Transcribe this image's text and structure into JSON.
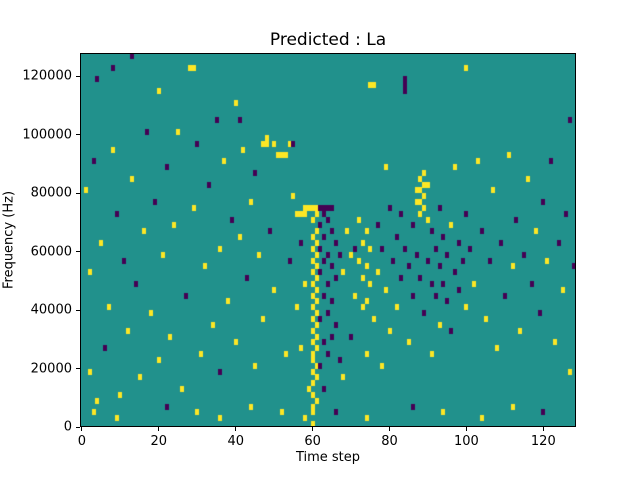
{
  "figure": {
    "title": "Predicted : La",
    "xlabel": "Time step",
    "ylabel": "Frequency (Hz)"
  },
  "chart_data": {
    "type": "heatmap",
    "title": "Predicted : La",
    "xlabel": "Time step",
    "ylabel": "Frequency (Hz)",
    "n_cols": 129,
    "n_rows": 64,
    "x_extent": [
      -0.5,
      128.5
    ],
    "y_extent": [
      0,
      128000
    ],
    "freq_bin_hz": 2000,
    "xticks": [
      0,
      20,
      40,
      60,
      80,
      100,
      120
    ],
    "yticks": [
      0,
      20000,
      40000,
      60000,
      80000,
      100000,
      120000
    ],
    "legend": "none",
    "grid": false,
    "colors": {
      "background": "#21918c",
      "high": "#fde725",
      "low": "#440154"
    },
    "cell_values": {
      "high": 1,
      "low": -1,
      "background": 0
    },
    "cells": [
      [
        1,
        40,
        1
      ],
      [
        2,
        9,
        1
      ],
      [
        2,
        26,
        1
      ],
      [
        3,
        45,
        -1
      ],
      [
        3,
        2,
        1
      ],
      [
        4,
        4,
        1
      ],
      [
        4,
        59,
        -1
      ],
      [
        5,
        31,
        1
      ],
      [
        6,
        13,
        -1
      ],
      [
        7,
        20,
        1
      ],
      [
        8,
        61,
        -1
      ],
      [
        8,
        47,
        1
      ],
      [
        9,
        36,
        -1
      ],
      [
        9,
        1,
        1
      ],
      [
        10,
        5,
        1
      ],
      [
        11,
        28,
        -1
      ],
      [
        12,
        16,
        1
      ],
      [
        13,
        63,
        -1
      ],
      [
        13,
        42,
        1
      ],
      [
        14,
        24,
        -1
      ],
      [
        15,
        8,
        1
      ],
      [
        16,
        33,
        1
      ],
      [
        17,
        50,
        -1
      ],
      [
        18,
        19,
        1
      ],
      [
        19,
        38,
        -1
      ],
      [
        20,
        11,
        1
      ],
      [
        20,
        57,
        1
      ],
      [
        21,
        29,
        1
      ],
      [
        22,
        44,
        -1
      ],
      [
        22,
        3,
        -1
      ],
      [
        23,
        15,
        1
      ],
      [
        24,
        34,
        1
      ],
      [
        25,
        50,
        1
      ],
      [
        26,
        6,
        1
      ],
      [
        27,
        22,
        -1
      ],
      [
        28,
        61,
        1
      ],
      [
        29,
        61,
        1
      ],
      [
        29,
        37,
        1
      ],
      [
        30,
        48,
        -1
      ],
      [
        30,
        2,
        1
      ],
      [
        31,
        12,
        1
      ],
      [
        32,
        27,
        1
      ],
      [
        33,
        41,
        -1
      ],
      [
        34,
        17,
        1
      ],
      [
        35,
        52,
        -1
      ],
      [
        36,
        30,
        1
      ],
      [
        36,
        9,
        -1
      ],
      [
        36,
        1,
        1
      ],
      [
        37,
        45,
        1
      ],
      [
        38,
        21,
        1
      ],
      [
        39,
        35,
        -1
      ],
      [
        40,
        55,
        1
      ],
      [
        40,
        14,
        1
      ],
      [
        41,
        32,
        1
      ],
      [
        41,
        52,
        -1
      ],
      [
        42,
        47,
        1
      ],
      [
        43,
        25,
        -1
      ],
      [
        44,
        38,
        1
      ],
      [
        44,
        3,
        1
      ],
      [
        45,
        10,
        1
      ],
      [
        45,
        43,
        -1
      ],
      [
        46,
        29,
        1
      ],
      [
        47,
        18,
        1
      ],
      [
        47,
        48,
        1
      ],
      [
        48,
        49,
        1
      ],
      [
        48,
        48,
        1
      ],
      [
        49,
        33,
        -1
      ],
      [
        50,
        23,
        1
      ],
      [
        50,
        48,
        1
      ],
      [
        51,
        46,
        1
      ],
      [
        52,
        46,
        1
      ],
      [
        52,
        2,
        1
      ],
      [
        53,
        46,
        1
      ],
      [
        53,
        12,
        1
      ],
      [
        54,
        28,
        -1
      ],
      [
        54,
        48,
        1
      ],
      [
        55,
        39,
        1
      ],
      [
        55,
        48,
        -1
      ],
      [
        56,
        20,
        1
      ],
      [
        56,
        36,
        1
      ],
      [
        57,
        31,
        -1
      ],
      [
        57,
        13,
        1
      ],
      [
        57,
        36,
        1
      ],
      [
        58,
        36,
        1
      ],
      [
        58,
        24,
        1
      ],
      [
        58,
        37,
        1
      ],
      [
        58,
        1,
        1
      ],
      [
        59,
        6,
        1
      ],
      [
        59,
        37,
        1
      ],
      [
        60,
        0,
        1
      ],
      [
        60,
        2,
        1
      ],
      [
        60,
        3,
        1
      ],
      [
        60,
        5,
        1
      ],
      [
        60,
        7,
        1
      ],
      [
        60,
        9,
        1
      ],
      [
        60,
        11,
        1
      ],
      [
        60,
        12,
        1
      ],
      [
        60,
        14,
        1
      ],
      [
        60,
        16,
        1
      ],
      [
        60,
        18,
        1
      ],
      [
        60,
        20,
        1
      ],
      [
        60,
        22,
        1
      ],
      [
        60,
        24,
        1
      ],
      [
        60,
        26,
        1
      ],
      [
        60,
        28,
        1
      ],
      [
        60,
        30,
        1
      ],
      [
        60,
        32,
        1
      ],
      [
        60,
        35,
        1
      ],
      [
        60,
        37,
        1
      ],
      [
        61,
        4,
        1
      ],
      [
        61,
        8,
        1
      ],
      [
        61,
        10,
        1
      ],
      [
        61,
        13,
        1
      ],
      [
        61,
        15,
        1
      ],
      [
        61,
        17,
        1
      ],
      [
        61,
        19,
        1
      ],
      [
        61,
        21,
        1
      ],
      [
        61,
        23,
        1
      ],
      [
        61,
        25,
        1
      ],
      [
        61,
        27,
        1
      ],
      [
        61,
        29,
        1
      ],
      [
        61,
        31,
        1
      ],
      [
        61,
        33,
        1
      ],
      [
        61,
        36,
        1
      ],
      [
        61,
        37,
        1
      ],
      [
        62,
        34,
        -1
      ],
      [
        62,
        30,
        -1
      ],
      [
        62,
        26,
        -1
      ],
      [
        62,
        18,
        -1
      ],
      [
        62,
        10,
        -1
      ],
      [
        62,
        37,
        -1
      ],
      [
        63,
        36,
        -1
      ],
      [
        63,
        32,
        -1
      ],
      [
        63,
        28,
        -1
      ],
      [
        63,
        22,
        -1
      ],
      [
        63,
        14,
        -1
      ],
      [
        63,
        6,
        -1
      ],
      [
        63,
        37,
        -1
      ],
      [
        64,
        35,
        -1
      ],
      [
        64,
        29,
        -1
      ],
      [
        64,
        24,
        -1
      ],
      [
        64,
        19,
        -1
      ],
      [
        64,
        12,
        -1
      ],
      [
        64,
        37,
        -1
      ],
      [
        65,
        33,
        -1
      ],
      [
        65,
        27,
        -1
      ],
      [
        65,
        21,
        -1
      ],
      [
        65,
        15,
        -1
      ],
      [
        65,
        37,
        -1
      ],
      [
        66,
        31,
        -1
      ],
      [
        66,
        25,
        -1
      ],
      [
        66,
        17,
        -1
      ],
      [
        66,
        2,
        -1
      ],
      [
        67,
        29,
        -1
      ],
      [
        67,
        11,
        -1
      ],
      [
        68,
        26,
        1
      ],
      [
        68,
        8,
        1
      ],
      [
        69,
        33,
        1
      ],
      [
        70,
        15,
        -1
      ],
      [
        70,
        29,
        1
      ],
      [
        71,
        22,
        1
      ],
      [
        71,
        30,
        -1
      ],
      [
        72,
        35,
        1
      ],
      [
        72,
        28,
        1
      ],
      [
        73,
        31,
        1
      ],
      [
        73,
        25,
        1
      ],
      [
        73,
        20,
        1
      ],
      [
        74,
        33,
        1
      ],
      [
        74,
        27,
        1
      ],
      [
        74,
        21,
        1
      ],
      [
        74,
        12,
        1
      ],
      [
        74,
        1,
        1
      ],
      [
        75,
        30,
        1
      ],
      [
        75,
        24,
        1
      ],
      [
        75,
        58,
        1
      ],
      [
        76,
        58,
        1
      ],
      [
        76,
        18,
        1
      ],
      [
        77,
        34,
        -1
      ],
      [
        77,
        26,
        1
      ],
      [
        78,
        30,
        -1
      ],
      [
        78,
        10,
        1
      ],
      [
        79,
        23,
        1
      ],
      [
        79,
        44,
        1
      ],
      [
        80,
        37,
        -1
      ],
      [
        80,
        16,
        1
      ],
      [
        81,
        28,
        -1
      ],
      [
        82,
        32,
        -1
      ],
      [
        82,
        20,
        1
      ],
      [
        83,
        36,
        -1
      ],
      [
        83,
        25,
        -1
      ],
      [
        84,
        57,
        -1
      ],
      [
        84,
        58,
        -1
      ],
      [
        84,
        59,
        -1
      ],
      [
        84,
        30,
        -1
      ],
      [
        85,
        27,
        -1
      ],
      [
        85,
        14,
        1
      ],
      [
        86,
        34,
        -1
      ],
      [
        86,
        22,
        -1
      ],
      [
        86,
        3,
        -1
      ],
      [
        87,
        40,
        1
      ],
      [
        87,
        38,
        1
      ],
      [
        87,
        29,
        -1
      ],
      [
        88,
        42,
        1
      ],
      [
        88,
        40,
        1
      ],
      [
        88,
        38,
        1
      ],
      [
        88,
        36,
        1
      ],
      [
        88,
        25,
        -1
      ],
      [
        89,
        43,
        1
      ],
      [
        89,
        41,
        1
      ],
      [
        89,
        39,
        1
      ],
      [
        89,
        37,
        1
      ],
      [
        89,
        19,
        -1
      ],
      [
        90,
        41,
        1
      ],
      [
        90,
        35,
        1
      ],
      [
        90,
        28,
        -1
      ],
      [
        91,
        33,
        -1
      ],
      [
        91,
        24,
        -1
      ],
      [
        91,
        12,
        1
      ],
      [
        92,
        30,
        -1
      ],
      [
        92,
        22,
        -1
      ],
      [
        93,
        37,
        -1
      ],
      [
        93,
        27,
        -1
      ],
      [
        93,
        17,
        1
      ],
      [
        94,
        32,
        -1
      ],
      [
        94,
        24,
        -1
      ],
      [
        94,
        2,
        1
      ],
      [
        95,
        29,
        -1
      ],
      [
        95,
        21,
        -1
      ],
      [
        96,
        34,
        1
      ],
      [
        96,
        16,
        -1
      ],
      [
        97,
        26,
        -1
      ],
      [
        97,
        44,
        1
      ],
      [
        98,
        31,
        -1
      ],
      [
        98,
        23,
        -1
      ],
      [
        99,
        28,
        -1
      ],
      [
        100,
        61,
        1
      ],
      [
        100,
        36,
        -1
      ],
      [
        100,
        20,
        1
      ],
      [
        101,
        30,
        -1
      ],
      [
        102,
        24,
        1
      ],
      [
        103,
        45,
        1
      ],
      [
        104,
        33,
        -1
      ],
      [
        104,
        1,
        1
      ],
      [
        105,
        18,
        1
      ],
      [
        106,
        28,
        -1
      ],
      [
        107,
        40,
        1
      ],
      [
        108,
        13,
        1
      ],
      [
        109,
        31,
        -1
      ],
      [
        110,
        22,
        -1
      ],
      [
        111,
        46,
        1
      ],
      [
        112,
        27,
        1
      ],
      [
        112,
        3,
        1
      ],
      [
        113,
        35,
        -1
      ],
      [
        114,
        16,
        1
      ],
      [
        115,
        29,
        -1
      ],
      [
        116,
        42,
        1
      ],
      [
        117,
        24,
        -1
      ],
      [
        118,
        33,
        1
      ],
      [
        119,
        19,
        -1
      ],
      [
        120,
        38,
        -1
      ],
      [
        120,
        2,
        -1
      ],
      [
        121,
        28,
        1
      ],
      [
        122,
        45,
        -1
      ],
      [
        123,
        14,
        1
      ],
      [
        124,
        31,
        -1
      ],
      [
        125,
        23,
        1
      ],
      [
        126,
        36,
        -1
      ],
      [
        127,
        52,
        -1
      ],
      [
        127,
        9,
        1
      ],
      [
        128,
        27,
        -1
      ]
    ]
  }
}
